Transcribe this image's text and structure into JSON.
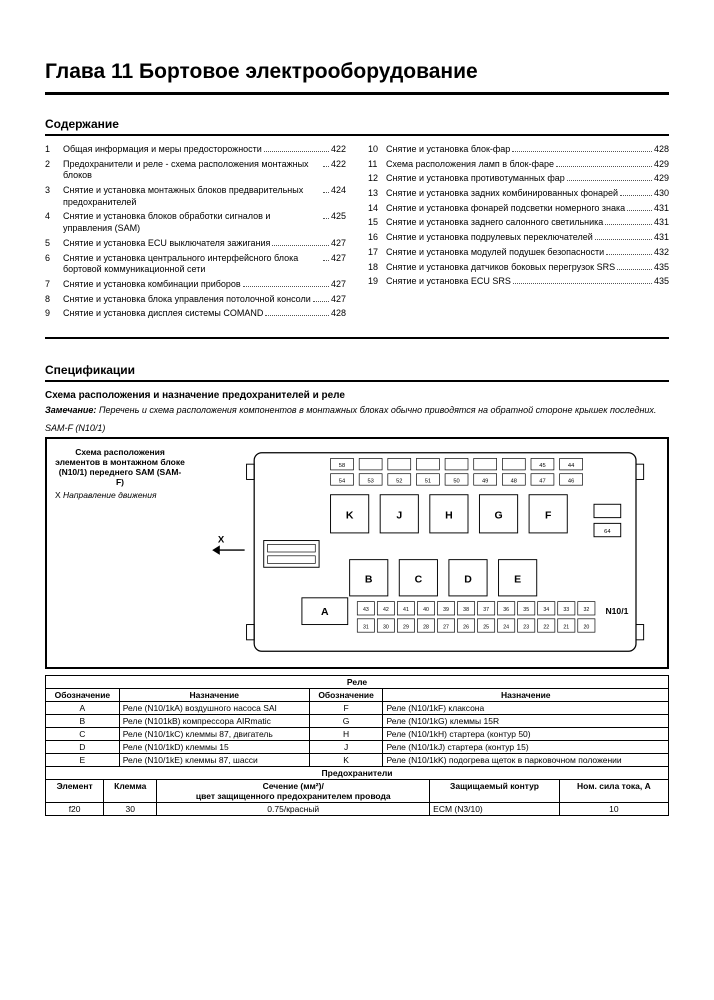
{
  "chapter_title": "Глава 11 Бортовое электрооборудование",
  "toc_header": "Содержание",
  "toc_left": [
    {
      "n": "1",
      "t": "Общая информация и меры предосторожности",
      "p": "422"
    },
    {
      "n": "2",
      "t": "Предохранители и реле - схема расположения монтажных блоков",
      "p": "422"
    },
    {
      "n": "3",
      "t": "Снятие и установка монтажных блоков предварительных предохранителей",
      "p": "424"
    },
    {
      "n": "4",
      "t": "Снятие и установка блоков обработки сигналов и управления (SAM)",
      "p": "425"
    },
    {
      "n": "5",
      "t": "Снятие и установка ECU выключателя зажигания",
      "p": "427"
    },
    {
      "n": "6",
      "t": "Снятие и установка центрального интерфейсного блока бортовой коммуникационной сети",
      "p": "427"
    },
    {
      "n": "7",
      "t": "Снятие и установка комбинации приборов",
      "p": "427"
    },
    {
      "n": "8",
      "t": "Снятие и установка блока управления потолочной консоли",
      "p": "427"
    },
    {
      "n": "9",
      "t": "Снятие и установка дисплея системы COMAND",
      "p": "428"
    }
  ],
  "toc_right": [
    {
      "n": "10",
      "t": "Снятие и установка блок-фар",
      "p": "428"
    },
    {
      "n": "11",
      "t": "Схема расположения ламп в блок-фаре",
      "p": "429"
    },
    {
      "n": "12",
      "t": "Снятие и установка противотуманных фар",
      "p": "429"
    },
    {
      "n": "13",
      "t": "Снятие и установка задних комбинированных фонарей",
      "p": "430"
    },
    {
      "n": "14",
      "t": "Снятие и установка фонарей подсветки номерного знака",
      "p": "431"
    },
    {
      "n": "15",
      "t": "Снятие и установка заднего салонного светильника",
      "p": "431"
    },
    {
      "n": "16",
      "t": "Снятие и установка подрулевых переключателей",
      "p": "431"
    },
    {
      "n": "17",
      "t": "Снятие и установка модулей подушек безопасности",
      "p": "432"
    },
    {
      "n": "18",
      "t": "Снятие и установка датчиков боковых перегрузок SRS",
      "p": "435"
    },
    {
      "n": "19",
      "t": "Снятие и установка ECU SRS",
      "p": "435"
    }
  ],
  "spec_header": "Спецификации",
  "scheme_header": "Схема расположения и назначение предохранителей и реле",
  "note_label": "Замечание:",
  "note_text": "Перечень и схема расположения компонентов в монтажных блоках обычно приводятся на обратной стороне крышек последних.",
  "sam_label": "SAM-F (N10/1)",
  "diagram_caption_bold": "Схема расположения элементов в монтажном блоке (N10/1) переднего SAM (SAM-F)",
  "diagram_caption_x": "X",
  "diagram_caption_x_text": "Направление движения",
  "relay_table": {
    "title": "Реле",
    "headers": [
      "Обозначение",
      "Назначение",
      "Обозначение",
      "Назначение"
    ],
    "rows": [
      [
        "A",
        "Реле (N10/1kA) воздушного насоса SAI",
        "F",
        "Реле (N10/1kF) клаксона"
      ],
      [
        "B",
        "Реле (N101kB) компрессора AIRmatic",
        "G",
        "Реле (N10/1kG) клеммы 15R"
      ],
      [
        "C",
        "Реле (N10/1kC) клеммы 87, двигатель",
        "H",
        "Реле (N10/1kH) стартера (контур 50)"
      ],
      [
        "D",
        "Реле (N10/1kD) клеммы 15",
        "J",
        "Реле (N10/1kJ) стартера (контур 15)"
      ],
      [
        "E",
        "Реле (N10/1kE) клеммы 87, шасси",
        "K",
        "Реле (N10/1kK) подогрева щеток в парковочном положении"
      ]
    ]
  },
  "fuse_table": {
    "title": "Предохранители",
    "headers": [
      "Элемент",
      "Клемма",
      "Сечение (мм²)/\nцвет защищенного предохранителем провода",
      "Защищаемый контур",
      "Ном. сила тока, А"
    ],
    "rows": [
      [
        "f20",
        "30",
        "0.75/красный",
        "ECM (N3/10)",
        "10"
      ]
    ]
  },
  "diagram": {
    "relays_top": [
      "K",
      "J",
      "H",
      "G",
      "F"
    ],
    "relays_bottom": [
      "B",
      "C",
      "D",
      "E"
    ],
    "relay_bottom_left": "A",
    "board_label": "N10/1",
    "arrow_label": "X",
    "small_fuses_row1": [
      "58",
      "",
      "",
      "",
      "",
      "",
      "",
      "45",
      "44"
    ],
    "small_fuses_row2": [
      "54",
      "53",
      "52",
      "51",
      "50",
      "49",
      "48",
      "47",
      "46"
    ],
    "fuse_rows": [
      [
        "43",
        "42",
        "41",
        "40",
        "39",
        "38",
        "37",
        "36",
        "35",
        "34",
        "33",
        "32"
      ],
      [
        "31",
        "30",
        "29",
        "28",
        "27",
        "26",
        "25",
        "24",
        "23",
        "22",
        "21",
        "20"
      ]
    ]
  }
}
